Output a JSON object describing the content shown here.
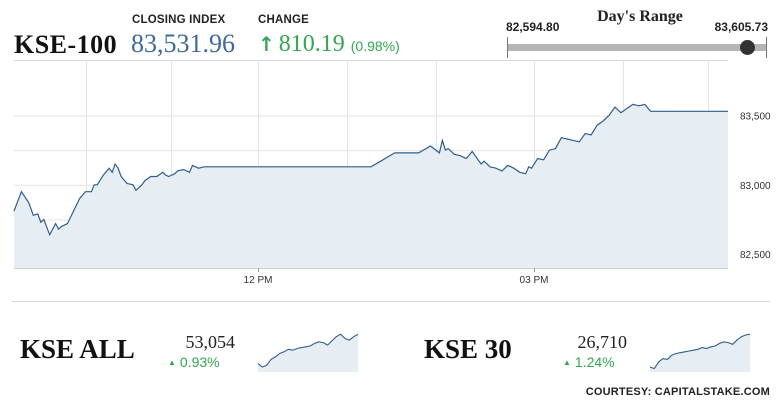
{
  "header": {
    "index_name": "KSE-100",
    "closing_label": "CLOSING INDEX",
    "closing_value": "83,531.96",
    "change_label": "CHANGE",
    "change_arrow": "↑",
    "change_value": "810.19",
    "change_pct": "(0.98%)",
    "colors": {
      "accent_blue": "#3b6a9e",
      "up_green": "#2fa84f"
    }
  },
  "days_range": {
    "title": "Day's Range",
    "low": "82,594.80",
    "high": "83,605.73",
    "current_fraction": 0.93
  },
  "chart_data": [
    {
      "type": "area",
      "name": "KSE-100 intraday",
      "xticks": [
        "12 PM",
        "03 PM"
      ],
      "yticks": [
        "83,500",
        "83,000",
        "82,500"
      ],
      "ylim": [
        82400,
        83900
      ],
      "grid": true,
      "x": [
        0,
        0.0156,
        0.031,
        0.0406,
        0.05,
        0.0563,
        0.0625,
        0.075,
        0.0875,
        0.0938,
        0.1,
        0.1125,
        0.125,
        0.1375,
        0.15,
        0.1625,
        0.1688,
        0.175,
        0.1875,
        0.2,
        0.2063,
        0.2125,
        0.2188,
        0.225,
        0.2375,
        0.25,
        0.2563,
        0.2688,
        0.275,
        0.2875,
        0.3,
        0.3125,
        0.3188,
        0.325,
        0.3375,
        0.3438,
        0.3563,
        0.3688,
        0.375,
        0.3875,
        0.4,
        0.425,
        0.45,
        0.475,
        0.5,
        0.55,
        0.6,
        0.65,
        0.7,
        0.75,
        0.8,
        0.85,
        0.875,
        0.8938,
        0.9,
        0.9063,
        0.9125,
        0.925,
        0.9375,
        0.95,
        0.9625,
        0.975,
        0.9813,
        0.9875,
        1,
        1.0125,
        1.025,
        1.0375,
        1.05,
        1.0625,
        1.075,
        1.0813,
        1.0875,
        1.1,
        1.1125,
        1.125,
        1.1375,
        1.15,
        1.1625,
        1.175,
        1.1875,
        1.2,
        1.2125,
        1.225,
        1.2375,
        1.25,
        1.2625,
        1.275,
        1.2875,
        1.3,
        1.3125,
        1.325,
        1.3375,
        1.35,
        1.3625,
        1.375,
        1.4,
        1.5
      ],
      "y": [
        82810,
        82950,
        82870,
        82780,
        82790,
        82730,
        82750,
        82640,
        82720,
        82680,
        82700,
        82720,
        82810,
        82900,
        82950,
        82950,
        83000,
        83000,
        83070,
        83120,
        83090,
        83150,
        83120,
        83060,
        83010,
        83000,
        82960,
        83000,
        83030,
        83060,
        83060,
        83090,
        83070,
        83060,
        83080,
        83100,
        83110,
        83090,
        83140,
        83120,
        83130,
        83130,
        83130,
        83130,
        83130,
        83130,
        83130,
        83130,
        83130,
        83130,
        83230,
        83230,
        83280,
        83230,
        83320,
        83250,
        83260,
        83220,
        83210,
        83190,
        83240,
        83180,
        83150,
        83170,
        83130,
        83120,
        83100,
        83140,
        83120,
        83090,
        83080,
        83130,
        83120,
        83190,
        83180,
        83250,
        83260,
        83340,
        83330,
        83320,
        83310,
        83370,
        83360,
        83430,
        83460,
        83500,
        83560,
        83520,
        83550,
        83580,
        83570,
        83580,
        83530,
        83530,
        83530,
        83530,
        83530,
        83530
      ],
      "x_is_relative_time": true
    },
    {
      "type": "line",
      "name": "KSE ALL",
      "values": [
        10,
        6,
        8,
        15,
        18,
        22,
        24,
        27,
        26,
        28,
        29,
        30,
        31,
        34,
        36,
        35,
        32,
        37,
        42,
        45,
        40,
        38,
        42,
        45
      ],
      "ylim": [
        0,
        50
      ]
    },
    {
      "type": "line",
      "name": "KSE 30",
      "values": [
        6,
        4,
        12,
        16,
        15,
        20,
        22,
        23,
        24,
        25,
        26,
        27,
        29,
        28,
        30,
        31,
        34,
        36,
        35,
        33,
        38,
        42,
        44,
        45
      ],
      "ylim": [
        0,
        50
      ]
    }
  ],
  "sub_indices": [
    {
      "name": "KSE ALL",
      "value": "53,054",
      "change": "0.93%",
      "tri": "▲"
    },
    {
      "name": "KSE 30",
      "value": "26,710",
      "change": "1.24%",
      "tri": "▲"
    }
  ],
  "footer": {
    "courtesy": "COURTESY: CAPITALSTAKE.COM"
  }
}
